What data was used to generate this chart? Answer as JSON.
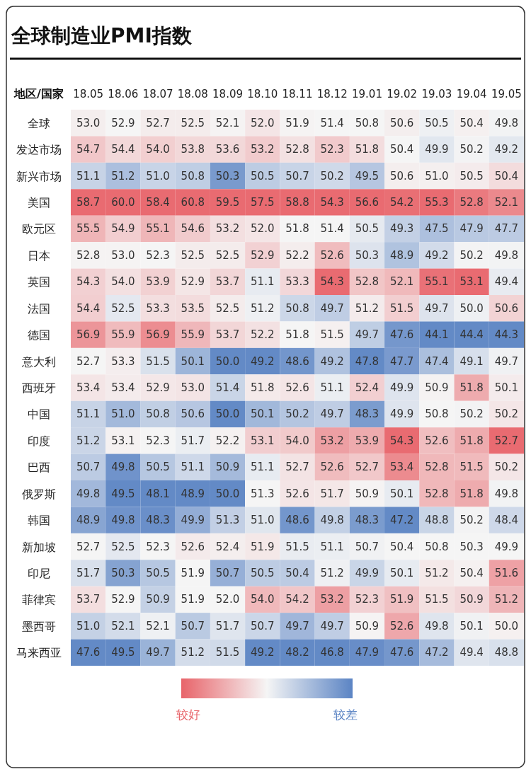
{
  "chart_data": {
    "type": "heatmap",
    "title": "全球制造业PMI指数",
    "ylabel": "地区/国家",
    "categories": [
      "18.05",
      "18.06",
      "18.07",
      "18.08",
      "18.09",
      "18.10",
      "18.11",
      "18.12",
      "19.01",
      "19.02",
      "19.03",
      "19.04",
      "19.05"
    ],
    "y_categories": [
      "全球",
      "发达市场",
      "新兴市场",
      "美国",
      "欧元区",
      "日本",
      "英国",
      "法国",
      "德国",
      "意大利",
      "西班牙",
      "中国",
      "印度",
      "巴西",
      "俄罗斯",
      "韩国",
      "新加坡",
      "印尼",
      "菲律宾",
      "墨西哥",
      "马来西亚"
    ],
    "cells": [
      [
        53.0,
        52.9,
        52.7,
        52.5,
        52.1,
        52.0,
        51.9,
        51.4,
        50.8,
        50.6,
        50.5,
        50.4,
        49.8
      ],
      [
        54.7,
        54.4,
        54.0,
        53.8,
        53.6,
        53.2,
        52.8,
        52.3,
        51.8,
        50.4,
        49.9,
        50.2,
        49.2
      ],
      [
        51.1,
        51.2,
        51.0,
        50.8,
        50.3,
        50.5,
        50.7,
        50.2,
        49.5,
        50.6,
        51.0,
        50.5,
        50.4
      ],
      [
        58.7,
        60.0,
        58.4,
        60.8,
        59.5,
        57.5,
        58.8,
        54.3,
        56.6,
        54.2,
        55.3,
        52.8,
        52.1
      ],
      [
        55.5,
        54.9,
        55.1,
        54.6,
        53.2,
        52.0,
        51.8,
        51.4,
        50.5,
        49.3,
        47.5,
        47.9,
        47.7
      ],
      [
        52.8,
        53.0,
        52.3,
        52.5,
        52.5,
        52.9,
        52.2,
        52.6,
        50.3,
        48.9,
        49.2,
        50.2,
        49.8
      ],
      [
        54.3,
        54.0,
        53.9,
        52.9,
        53.7,
        51.1,
        53.3,
        54.3,
        52.8,
        52.1,
        55.1,
        53.1,
        49.4
      ],
      [
        54.4,
        52.5,
        53.3,
        53.5,
        52.5,
        51.2,
        50.8,
        49.7,
        51.2,
        51.5,
        49.7,
        50.0,
        50.6
      ],
      [
        56.9,
        55.9,
        56.9,
        55.9,
        53.7,
        52.2,
        51.8,
        51.5,
        49.7,
        47.6,
        44.1,
        44.4,
        44.3
      ],
      [
        52.7,
        53.3,
        51.5,
        50.1,
        50.0,
        49.2,
        48.6,
        49.2,
        47.8,
        47.7,
        47.4,
        49.1,
        49.7
      ],
      [
        53.4,
        53.4,
        52.9,
        53.0,
        51.4,
        51.8,
        52.6,
        51.1,
        52.4,
        49.9,
        50.9,
        51.8,
        50.1
      ],
      [
        51.1,
        51.0,
        50.8,
        50.6,
        50.0,
        50.1,
        50.2,
        49.7,
        48.3,
        49.9,
        50.8,
        50.2,
        50.2
      ],
      [
        51.2,
        53.1,
        52.3,
        51.7,
        52.2,
        53.1,
        54.0,
        53.2,
        53.9,
        54.3,
        52.6,
        51.8,
        52.7
      ],
      [
        50.7,
        49.8,
        50.5,
        51.1,
        50.9,
        51.1,
        52.7,
        52.6,
        52.7,
        53.4,
        52.8,
        51.5,
        50.2
      ],
      [
        49.8,
        49.5,
        48.1,
        48.9,
        50.0,
        51.3,
        52.6,
        51.7,
        50.9,
        50.1,
        52.8,
        51.8,
        49.8
      ],
      [
        48.9,
        49.8,
        48.3,
        49.9,
        51.3,
        51.0,
        48.6,
        49.8,
        48.3,
        47.2,
        48.8,
        50.2,
        48.4
      ],
      [
        52.7,
        52.5,
        52.3,
        52.6,
        52.4,
        51.9,
        51.5,
        51.1,
        50.7,
        50.4,
        50.8,
        50.3,
        49.9
      ],
      [
        51.7,
        50.3,
        50.5,
        51.9,
        50.7,
        50.5,
        50.4,
        51.2,
        49.9,
        50.1,
        51.2,
        50.4,
        51.6
      ],
      [
        53.7,
        52.9,
        50.9,
        51.9,
        52.0,
        54.0,
        54.2,
        53.2,
        52.3,
        51.9,
        51.5,
        50.9,
        51.2
      ],
      [
        51.0,
        52.1,
        52.1,
        50.7,
        51.7,
        50.7,
        49.7,
        49.7,
        50.9,
        52.6,
        49.8,
        50.1,
        50.0
      ],
      [
        47.6,
        49.5,
        49.7,
        51.2,
        51.5,
        49.2,
        48.2,
        46.8,
        47.9,
        47.6,
        47.2,
        49.4,
        48.8
      ]
    ],
    "colors": [
      "#e8646a",
      "#f5f5f5",
      "#5b84c4"
    ],
    "cell_labels": [
      [
        "53.0",
        "52.9",
        "52.7",
        "52.5",
        "52.1",
        "52.0",
        "51.9",
        "51.4",
        "50.8",
        "50.6",
        "50.5",
        "50.4",
        "49.8"
      ],
      [
        "54.7",
        "54.4",
        "54.0",
        "53.8",
        "53.6",
        "53.2",
        "52.8",
        "52.3",
        "51.8",
        "50.4",
        "49.9",
        "50.2",
        "49.2"
      ],
      [
        "51.1",
        "51.2",
        "51.0",
        "50.8",
        "50.3",
        "50.5",
        "50.7",
        "50.2",
        "49.5",
        "50.6",
        "51.0",
        "50.5",
        "50.4"
      ],
      [
        "58.7",
        "60.0",
        "58.4",
        "60.8",
        "59.5",
        "57.5",
        "58.8",
        "54.3",
        "56.6",
        "54.2",
        "55.3",
        "52.8",
        "52.1"
      ],
      [
        "55.5",
        "54.9",
        "55.1",
        "54.6",
        "53.2",
        "52.0",
        "51.8",
        "51.4",
        "50.5",
        "49.3",
        "47.5",
        "47.9",
        "47.7"
      ],
      [
        "52.8",
        "53.0",
        "52.3",
        "52.5",
        "52.5",
        "52.9",
        "52.2",
        "52.6",
        "50.3",
        "48.9",
        "49.2",
        "50.2",
        "49.8"
      ],
      [
        "54.3",
        "54.0",
        "53.9",
        "52.9",
        "53.7",
        "51.1",
        "53.3",
        "54.3",
        "52.8",
        "52.1",
        "55.1",
        "53.1",
        "49.4"
      ],
      [
        "54.4",
        "52.5",
        "53.3",
        "53.5",
        "52.5",
        "51.2",
        "50.8",
        "49.7",
        "51.2",
        "51.5",
        "49.7",
        "50.0",
        "50.6"
      ],
      [
        "56.9",
        "55.9",
        "56.9",
        "55.9",
        "53.7",
        "52.2",
        "51.8",
        "51.5",
        "49.7",
        "47.6",
        "44.1",
        "44.4",
        "44.3"
      ],
      [
        "52.7",
        "53.3",
        "51.5",
        "50.1",
        "50.0",
        "49.2",
        "48.6",
        "49.2",
        "47.8",
        "47.7",
        "47.4",
        "49.1",
        "49.7"
      ],
      [
        "53.4",
        "53.4",
        "52.9",
        "53.0",
        "51.4",
        "51.8",
        "52.6",
        "51.1",
        "52.4",
        "49.9",
        "50.9",
        "51.8",
        "50.1"
      ],
      [
        "51.1",
        "51.0",
        "50.8",
        "50.6",
        "50.0",
        "50.1",
        "50.2",
        "49.7",
        "48.3",
        "49.9",
        "50.8",
        "50.2",
        "50.2"
      ],
      [
        "51.2",
        "53.1",
        "52.3",
        "51.7",
        "52.2",
        "53.1",
        "54.0",
        "53.2",
        "53.9",
        "54.3",
        "52.6",
        "51.8",
        "52.7"
      ],
      [
        "50.7",
        "49.8",
        "50.5",
        "51.1",
        "50.9",
        "51.1",
        "52.7",
        "52.6",
        "52.7",
        "53.4",
        "52.8",
        "51.5",
        "50.2"
      ],
      [
        "49.8",
        "49.5",
        "48.1",
        "48.9",
        "50.0",
        "51.3",
        "52.6",
        "51.7",
        "50.9",
        "50.1",
        "52.8",
        "51.8",
        "49.8"
      ],
      [
        "48.9",
        "49.8",
        "48.3",
        "49.9",
        "51.3",
        "51.0",
        "48.6",
        "49.8",
        "48.3",
        "47.2",
        "48.8",
        "50.2",
        "48.4"
      ],
      [
        "52.7",
        "52.5",
        "52.3",
        "52.6",
        "52.4",
        "51.9",
        "51.5",
        "51.1",
        "50.7",
        "50.4",
        "50.8",
        "50.3",
        "49.9"
      ],
      [
        "51.7",
        "50.3",
        "50.5",
        "51.9",
        "50.7",
        "50.5",
        "50.4",
        "51.2",
        "49.9",
        "50.1",
        "51.2",
        "50.4",
        "51.6"
      ],
      [
        "53.7",
        "52.9",
        "50.9",
        "51.9",
        "52.0",
        "54.0",
        "54.2",
        "53.2",
        "52.3",
        "51.9",
        "51.5",
        "50.9",
        "51.2"
      ],
      [
        "51.0",
        "52.1",
        "52.1",
        "50.7",
        "51.7",
        "50.7",
        "49.7",
        "49.7",
        "50.9",
        "52.6",
        "49.8",
        "50.1",
        "50.0"
      ],
      [
        "47.6",
        "49.5",
        "49.7",
        "51.2",
        "51.5",
        "49.2",
        "48.2",
        "46.8",
        "47.9",
        "47.6",
        "47.2",
        "49.4",
        "48.8"
      ]
    ],
    "annotations": [
      "较好",
      "较差"
    ],
    "data_labels": true
  }
}
